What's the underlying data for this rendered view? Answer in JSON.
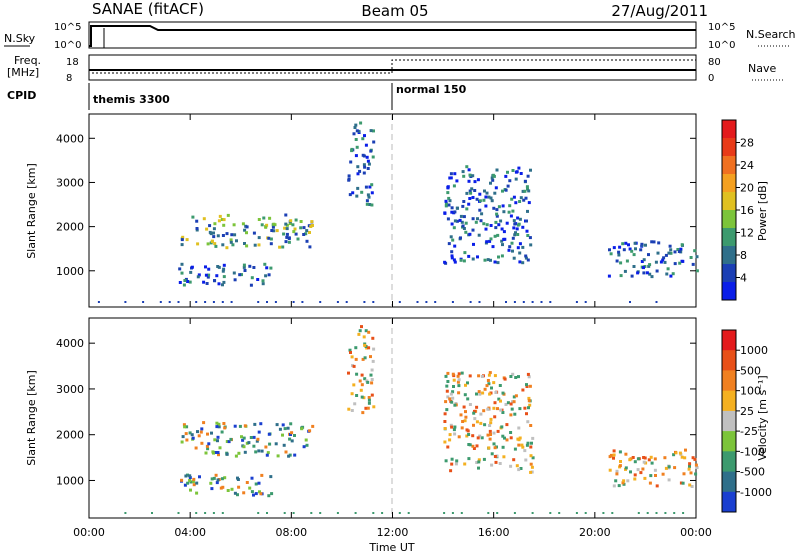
{
  "header": {
    "station": "SANAE (fitACF)",
    "beam": "Beam 05",
    "date": "27/Aug/2011"
  },
  "panels": {
    "nsky": {
      "label": "N.Sky",
      "ticks": [
        "10^5",
        "10^0"
      ],
      "right_label": "N.Search",
      "right_ticks": [
        "10^5",
        "10^0"
      ]
    },
    "freq": {
      "label_line1": "Freq.",
      "label_line2": "[MHz]",
      "ticks": [
        "18",
        "8"
      ],
      "right_label": "Nave",
      "right_ticks": [
        "80",
        "0"
      ]
    },
    "cpid": {
      "label": "CPID",
      "modes": [
        "themis 3300",
        "normal 150"
      ]
    }
  },
  "chart_data": [
    {
      "type": "heatmap",
      "title": "",
      "ylabel": "Slant Range [km]",
      "xlabel": "",
      "x_ticks": [
        "00:00",
        "04:00",
        "08:00",
        "12:00",
        "16:00",
        "20:00",
        "00:00"
      ],
      "y_ticks": [
        "1000",
        "2000",
        "3000",
        "4000"
      ],
      "ylim": [
        180,
        4550
      ],
      "xlim_hours": [
        0,
        24
      ],
      "colorbar": {
        "label": "Power [dB]",
        "ticks": [
          "4",
          "8",
          "12",
          "16",
          "20",
          "24",
          "28"
        ],
        "colors": [
          "#0a1ee8",
          "#1b3fb4",
          "#2f6f8a",
          "#3c9a6e",
          "#7cc43a",
          "#e0c020",
          "#f4a020",
          "#f07020",
          "#e83a18",
          "#e31a1c"
        ]
      },
      "scatter_regions": [
        {
          "t0": 3.6,
          "t1": 8.8,
          "r0": 1550,
          "r1": 2300,
          "dominant": "green"
        },
        {
          "t0": 3.5,
          "t1": 7.2,
          "r0": 700,
          "r1": 1200,
          "dominant": "blue"
        },
        {
          "t0": 10.2,
          "t1": 11.2,
          "r0": 2500,
          "r1": 4400,
          "dominant": "blue"
        },
        {
          "t0": 14.0,
          "t1": 17.5,
          "r0": 1200,
          "r1": 3400,
          "dominant": "blue"
        },
        {
          "t0": 20.5,
          "t1": 24.0,
          "r0": 900,
          "r1": 1700,
          "dominant": "blue"
        }
      ]
    },
    {
      "type": "heatmap",
      "title": "",
      "ylabel": "Slant Range [km]",
      "xlabel": "Time UT",
      "x_ticks": [
        "00:00",
        "04:00",
        "08:00",
        "12:00",
        "16:00",
        "20:00",
        "00:00"
      ],
      "y_ticks": [
        "1000",
        "2000",
        "3000",
        "4000"
      ],
      "ylim": [
        180,
        4550
      ],
      "xlim_hours": [
        0,
        24
      ],
      "colorbar": {
        "label": "Velocity [m s⁻¹]",
        "ticks": [
          "1000",
          "500",
          "100",
          "25",
          "-25",
          "-100",
          "-500",
          "-1000"
        ],
        "colors": [
          "#1a3fd0",
          "#2f6f8a",
          "#3c9a6e",
          "#7cc43a",
          "#c0c0c0",
          "#f4b020",
          "#f08020",
          "#e85018",
          "#e31a1c"
        ]
      },
      "scatter_regions": [
        {
          "t0": 3.6,
          "t1": 8.8,
          "r0": 1550,
          "r1": 2300,
          "dominant": "green"
        },
        {
          "t0": 3.5,
          "t1": 7.2,
          "r0": 700,
          "r1": 1200,
          "dominant": "green"
        },
        {
          "t0": 10.2,
          "t1": 11.2,
          "r0": 2500,
          "r1": 4400,
          "dominant": "orange"
        },
        {
          "t0": 14.0,
          "t1": 17.5,
          "r0": 1200,
          "r1": 3400,
          "dominant": "orange"
        },
        {
          "t0": 20.5,
          "t1": 24.0,
          "r0": 900,
          "r1": 1700,
          "dominant": "orange"
        }
      ]
    }
  ]
}
